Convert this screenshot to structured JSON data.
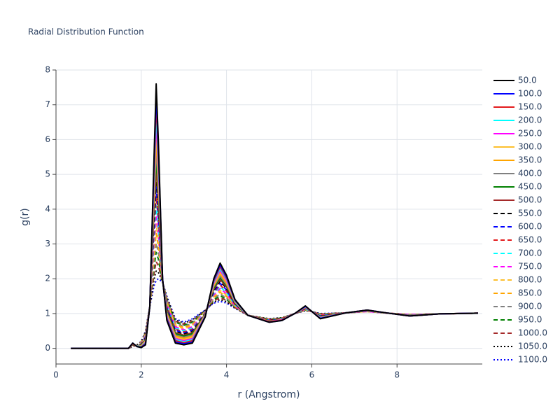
{
  "chart_data": {
    "type": "line",
    "title": "Radial Distribution Function",
    "x_label": "r (Angstrom)",
    "y_label": "g(r)",
    "xlim": [
      0,
      10
    ],
    "ylim": [
      -0.45,
      8
    ],
    "xticks": [
      0,
      2,
      4,
      6,
      8
    ],
    "yticks": [
      0,
      1,
      2,
      3,
      4,
      5,
      6,
      7,
      8
    ],
    "grid": true,
    "legend": "right",
    "x": [
      0.35,
      1.7,
      1.8,
      1.9,
      2.0,
      2.1,
      2.2,
      2.3,
      2.35,
      2.4,
      2.5,
      2.6,
      2.8,
      3.0,
      3.2,
      3.5,
      3.7,
      3.85,
      4.0,
      4.2,
      4.5,
      5.0,
      5.3,
      5.6,
      5.85,
      6.0,
      6.2,
      6.8,
      7.3,
      7.8,
      8.3,
      9.0,
      9.9
    ],
    "series": [
      {
        "name": "50.0",
        "color": "#000000",
        "dash": "solid",
        "values": [
          0,
          0,
          0.15,
          0.05,
          0.02,
          0.1,
          1.2,
          5.5,
          7.6,
          6,
          2.0,
          0.8,
          0.15,
          0.1,
          0.15,
          0.9,
          2.0,
          2.45,
          2.1,
          1.4,
          0.95,
          0.75,
          0.8,
          1.0,
          1.22,
          1.06,
          0.85,
          1.02,
          1.1,
          1.01,
          0.93,
          0.99,
          1.01
        ]
      },
      {
        "name": "100.0",
        "color": "#0000ff",
        "dash": "solid",
        "values": [
          0,
          0,
          0.15,
          0.05,
          0.03,
          0.12,
          1.2,
          5.32,
          7.33,
          5.81,
          2.0,
          0.83,
          0.18,
          0.13,
          0.18,
          0.91,
          1.97,
          2.4,
          2.06,
          1.39,
          0.95,
          0.75,
          0.8,
          1.0,
          1.21,
          1.06,
          0.86,
          1.02,
          1.1,
          1.01,
          0.93,
          0.99,
          1.01
        ]
      },
      {
        "name": "150.0",
        "color": "#e31a1c",
        "dash": "solid",
        "values": [
          0,
          0,
          0.14,
          0.05,
          0.04,
          0.14,
          1.2,
          5.15,
          7.06,
          5.62,
          1.99,
          0.87,
          0.22,
          0.16,
          0.22,
          0.92,
          1.93,
          2.35,
          2.02,
          1.38,
          0.95,
          0.76,
          0.81,
          1.0,
          1.21,
          1.06,
          0.86,
          1.02,
          1.1,
          1.01,
          0.93,
          0.99,
          1.01
        ]
      },
      {
        "name": "200.0",
        "color": "#00ffff",
        "dash": "solid",
        "values": [
          0,
          0,
          0.14,
          0.06,
          0.05,
          0.16,
          1.2,
          4.97,
          6.79,
          5.43,
          1.99,
          0.9,
          0.25,
          0.19,
          0.25,
          0.93,
          1.9,
          2.29,
          1.99,
          1.36,
          0.95,
          0.76,
          0.81,
          1.0,
          1.2,
          1.06,
          0.87,
          1.02,
          1.1,
          1.01,
          0.93,
          0.99,
          1.01
        ]
      },
      {
        "name": "250.0",
        "color": "#ff00ff",
        "dash": "solid",
        "values": [
          0,
          0,
          0.13,
          0.06,
          0.05,
          0.18,
          1.2,
          4.8,
          6.53,
          5.24,
          1.98,
          0.93,
          0.28,
          0.22,
          0.28,
          0.94,
          1.87,
          2.24,
          1.95,
          1.35,
          0.95,
          0.77,
          0.82,
          1.0,
          1.19,
          1.06,
          0.88,
          1.02,
          1.1,
          1.01,
          0.93,
          0.99,
          1.01
        ]
      },
      {
        "name": "300.0",
        "color": "#fdbf2d",
        "dash": "solid",
        "values": [
          0,
          0,
          0.13,
          0.06,
          0.06,
          0.2,
          1.2,
          4.62,
          6.26,
          5.05,
          1.98,
          0.97,
          0.32,
          0.25,
          0.32,
          0.95,
          1.83,
          2.19,
          1.91,
          1.34,
          0.95,
          0.77,
          0.82,
          1.0,
          1.19,
          1.06,
          0.89,
          1.02,
          1.1,
          1.01,
          0.93,
          0.99,
          1.01
        ]
      },
      {
        "name": "350.0",
        "color": "#ffa500",
        "dash": "solid",
        "values": [
          0,
          0,
          0.12,
          0.06,
          0.07,
          0.21,
          1.2,
          4.44,
          5.98,
          4.86,
          1.97,
          1.0,
          0.35,
          0.29,
          0.35,
          0.96,
          1.8,
          2.14,
          1.87,
          1.33,
          0.95,
          0.78,
          0.82,
          1.0,
          1.18,
          1.06,
          0.89,
          1.02,
          1.1,
          1.01,
          0.93,
          0.99,
          1.01
        ]
      },
      {
        "name": "400.0",
        "color": "#808080",
        "dash": "solid",
        "values": [
          0,
          0,
          0.12,
          0.07,
          0.08,
          0.23,
          1.2,
          4.27,
          5.72,
          4.67,
          1.97,
          1.03,
          0.38,
          0.32,
          0.38,
          0.97,
          1.77,
          2.08,
          1.83,
          1.32,
          0.95,
          0.78,
          0.83,
          1.0,
          1.17,
          1.06,
          0.9,
          1.02,
          1.08,
          1.01,
          0.95,
          0.99,
          1.01
        ]
      },
      {
        "name": "450.0",
        "color": "#008000",
        "dash": "solid",
        "values": [
          0,
          0,
          0.11,
          0.07,
          0.09,
          0.25,
          1.2,
          4.09,
          5.45,
          4.48,
          1.96,
          1.07,
          0.42,
          0.35,
          0.42,
          0.98,
          1.73,
          2.03,
          1.8,
          1.3,
          0.95,
          0.79,
          0.83,
          1.0,
          1.17,
          1.06,
          0.91,
          1.02,
          1.08,
          1.01,
          0.95,
          0.99,
          1.01
        ]
      },
      {
        "name": "500.0",
        "color": "#a52a2a",
        "dash": "solid",
        "values": [
          0,
          0,
          0.11,
          0.07,
          0.1,
          0.27,
          1.2,
          3.91,
          5.18,
          4.28,
          1.96,
          1.1,
          0.45,
          0.38,
          0.45,
          0.99,
          1.7,
          1.98,
          1.76,
          1.29,
          0.95,
          0.79,
          0.83,
          1.0,
          1.16,
          1.06,
          0.91,
          1.02,
          1.08,
          1.01,
          0.95,
          0.99,
          1.01
        ]
      },
      {
        "name": "550.0",
        "color": "#000000",
        "dash": "dash",
        "values": [
          0,
          0,
          0.1,
          0.07,
          0.11,
          0.29,
          1.2,
          3.74,
          4.91,
          4.1,
          1.95,
          1.13,
          0.48,
          0.41,
          0.48,
          1.0,
          1.67,
          1.93,
          1.72,
          1.28,
          0.95,
          0.8,
          0.84,
          1.0,
          1.15,
          1.06,
          0.92,
          1.02,
          1.08,
          1.01,
          0.95,
          0.99,
          1.01
        ]
      },
      {
        "name": "600.0",
        "color": "#0000ff",
        "dash": "dash",
        "values": [
          0,
          0,
          0.1,
          0.08,
          0.11,
          0.31,
          1.2,
          3.56,
          4.64,
          3.9,
          1.95,
          1.17,
          0.52,
          0.44,
          0.52,
          1.0,
          1.63,
          1.87,
          1.68,
          1.27,
          0.95,
          0.8,
          0.84,
          1.0,
          1.15,
          1.06,
          0.93,
          1.02,
          1.08,
          1.01,
          0.95,
          0.99,
          1.01
        ]
      },
      {
        "name": "650.0",
        "color": "#e31a1c",
        "dash": "dash",
        "values": [
          0,
          0,
          0.09,
          0.08,
          0.12,
          0.33,
          1.2,
          3.39,
          4.37,
          3.72,
          1.94,
          1.2,
          0.55,
          0.47,
          0.55,
          1.01,
          1.6,
          1.82,
          1.64,
          1.26,
          0.95,
          0.81,
          0.85,
          1.0,
          1.14,
          1.06,
          0.94,
          1.02,
          1.08,
          1.01,
          0.95,
          0.99,
          1.01
        ]
      },
      {
        "name": "700.0",
        "color": "#00ffff",
        "dash": "dash",
        "values": [
          0,
          0,
          0.09,
          0.08,
          0.13,
          0.35,
          1.2,
          3.21,
          4.1,
          3.52,
          1.94,
          1.23,
          0.58,
          0.5,
          0.58,
          1.02,
          1.57,
          1.77,
          1.6,
          1.25,
          0.95,
          0.81,
          0.85,
          1.0,
          1.13,
          1.06,
          0.94,
          1.02,
          1.08,
          1.01,
          0.95,
          0.99,
          1.01
        ]
      },
      {
        "name": "750.0",
        "color": "#ff00ff",
        "dash": "dash",
        "values": [
          0,
          0,
          0.08,
          0.08,
          0.14,
          0.37,
          1.2,
          3.03,
          3.83,
          3.33,
          1.93,
          1.27,
          0.62,
          0.53,
          0.62,
          1.03,
          1.53,
          1.72,
          1.57,
          1.23,
          0.95,
          0.82,
          0.85,
          1.0,
          1.13,
          1.06,
          0.95,
          1.02,
          1.06,
          1.01,
          0.97,
          0.99,
          1.01
        ]
      },
      {
        "name": "800.0",
        "color": "#fdbf2d",
        "dash": "dash",
        "values": [
          0,
          0,
          0.08,
          0.09,
          0.15,
          0.39,
          1.2,
          2.86,
          3.57,
          3.14,
          1.93,
          1.3,
          0.65,
          0.56,
          0.65,
          1.04,
          1.5,
          1.66,
          1.53,
          1.22,
          0.95,
          0.82,
          0.86,
          1.0,
          1.12,
          1.06,
          0.96,
          1.02,
          1.06,
          1.01,
          0.97,
          0.99,
          1.01
        ]
      },
      {
        "name": "850.0",
        "color": "#ffa500",
        "dash": "dash",
        "values": [
          0,
          0,
          0.07,
          0.09,
          0.16,
          0.4,
          1.2,
          2.68,
          3.3,
          2.95,
          1.92,
          1.33,
          0.68,
          0.6,
          0.68,
          1.05,
          1.47,
          1.61,
          1.49,
          1.21,
          0.95,
          0.83,
          0.86,
          1.0,
          1.11,
          1.06,
          0.96,
          1.02,
          1.06,
          1.01,
          0.97,
          0.99,
          1.01
        ]
      },
      {
        "name": "900.0",
        "color": "#808080",
        "dash": "dash",
        "values": [
          0,
          0,
          0.07,
          0.09,
          0.17,
          0.42,
          1.2,
          2.5,
          3.02,
          2.76,
          1.92,
          1.37,
          0.72,
          0.63,
          0.72,
          1.06,
          1.43,
          1.56,
          1.45,
          1.2,
          0.95,
          0.83,
          0.86,
          1.0,
          1.11,
          1.06,
          0.97,
          1.02,
          1.06,
          1.01,
          0.97,
          0.99,
          1.01
        ]
      },
      {
        "name": "950.0",
        "color": "#008000",
        "dash": "dash",
        "values": [
          0,
          0,
          0.06,
          0.09,
          0.17,
          0.44,
          1.2,
          2.33,
          2.76,
          2.57,
          1.91,
          1.4,
          0.75,
          0.66,
          0.75,
          1.07,
          1.4,
          1.51,
          1.41,
          1.19,
          0.95,
          0.84,
          0.87,
          1.0,
          1.1,
          1.06,
          0.98,
          1.02,
          1.06,
          1.01,
          0.97,
          0.99,
          1.01
        ]
      },
      {
        "name": "1000.0",
        "color": "#a52a2a",
        "dash": "dash",
        "values": [
          0,
          0,
          0.06,
          0.1,
          0.18,
          0.46,
          1.2,
          2.15,
          2.49,
          2.38,
          1.91,
          1.43,
          0.78,
          0.69,
          0.78,
          1.08,
          1.37,
          1.45,
          1.38,
          1.17,
          0.95,
          0.84,
          0.87,
          1.0,
          1.09,
          1.06,
          0.99,
          1.02,
          1.06,
          1.01,
          0.97,
          0.99,
          1.01
        ]
      },
      {
        "name": "1050.0",
        "color": "#000000",
        "dash": "dot",
        "values": [
          0,
          0,
          0.05,
          0.1,
          0.19,
          0.48,
          1.2,
          1.98,
          2.22,
          2.19,
          1.9,
          1.47,
          0.82,
          0.72,
          0.82,
          1.09,
          1.33,
          1.4,
          1.34,
          1.16,
          0.95,
          0.85,
          0.88,
          1.0,
          1.09,
          1.06,
          0.99,
          1.02,
          1.06,
          1.01,
          0.97,
          0.99,
          1.01
        ]
      },
      {
        "name": "1100.0",
        "color": "#0000ff",
        "dash": "dot",
        "values": [
          0,
          0,
          0.05,
          0.1,
          0.2,
          0.5,
          1.2,
          1.8,
          1.95,
          2.0,
          1.9,
          1.5,
          0.85,
          0.75,
          0.85,
          1.1,
          1.3,
          1.35,
          1.3,
          1.15,
          0.95,
          0.85,
          0.88,
          1.0,
          1.08,
          1.06,
          1.0,
          1.02,
          1.06,
          1.01,
          0.97,
          0.99,
          1.01
        ]
      }
    ]
  }
}
